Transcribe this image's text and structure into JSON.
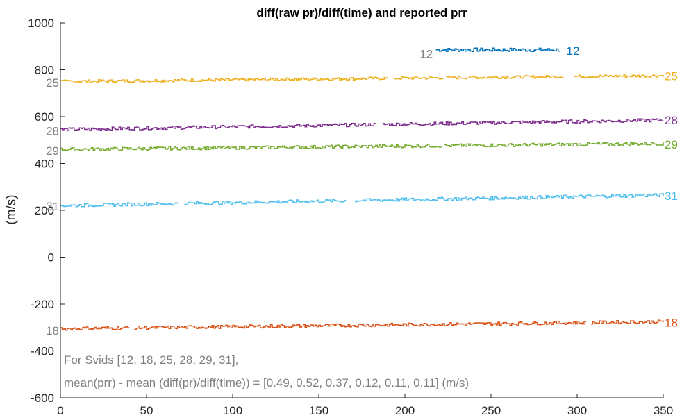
{
  "chart_data": {
    "type": "line",
    "title": "diff(raw pr)/diff(time) and reported prr",
    "xlabel": "",
    "ylabel": "(m/s)",
    "xlim": [
      0,
      350
    ],
    "ylim": [
      -600,
      1000
    ],
    "x_ticks": [
      0,
      50,
      100,
      150,
      200,
      250,
      300,
      350
    ],
    "y_ticks": [
      -600,
      -400,
      -200,
      0,
      200,
      400,
      600,
      800,
      1000
    ],
    "grid": false,
    "legend": "none",
    "series": [
      {
        "name": "12",
        "color": "#0072BD",
        "segments": [
          [
            218,
            290
          ]
        ],
        "y_start": 885,
        "y_end": 885,
        "noise": 8
      },
      {
        "name": "25",
        "color": "#EDB120",
        "segments": [
          [
            0,
            190
          ],
          [
            194,
            222
          ],
          [
            224,
            292
          ],
          [
            298,
            350
          ]
        ],
        "y_start": 750,
        "y_end": 775,
        "noise": 6
      },
      {
        "name": "28",
        "color": "#7E2F8E",
        "segments": [
          [
            0,
            183
          ],
          [
            187,
            350
          ]
        ],
        "y_start": 545,
        "y_end": 585,
        "noise": 7
      },
      {
        "name": "29",
        "color": "#77AC30",
        "segments": [
          [
            0,
            221
          ],
          [
            223,
            350
          ]
        ],
        "y_start": 460,
        "y_end": 485,
        "noise": 7
      },
      {
        "name": "31",
        "color": "#4DBEEE",
        "segments": [
          [
            0,
            68
          ],
          [
            72,
            166
          ],
          [
            171,
            350
          ]
        ],
        "y_start": 220,
        "y_end": 265,
        "noise": 7
      },
      {
        "name": "18",
        "color": "#D95319",
        "segments": [
          [
            0,
            40
          ],
          [
            43,
            305
          ],
          [
            308,
            350
          ]
        ],
        "y_start": -305,
        "y_end": -275,
        "noise": 7
      }
    ],
    "series_labels": [
      {
        "text": "12",
        "color": "#0072BD",
        "x": 293,
        "y": 882,
        "anchor": "start"
      },
      {
        "text": "12",
        "color": "#808080",
        "x": 217,
        "y": 868,
        "anchor": "end"
      },
      {
        "text": "25",
        "color": "#EDB120",
        "x": 350,
        "y": 774,
        "anchor": "start"
      },
      {
        "text": "25",
        "color": "#808080",
        "x": 0,
        "y": 745,
        "anchor": "end"
      },
      {
        "text": "28",
        "color": "#7E2F8E",
        "x": 350,
        "y": 585,
        "anchor": "start"
      },
      {
        "text": "28",
        "color": "#808080",
        "x": 0,
        "y": 540,
        "anchor": "end"
      },
      {
        "text": "29",
        "color": "#77AC30",
        "x": 350,
        "y": 482,
        "anchor": "start"
      },
      {
        "text": "29",
        "color": "#808080",
        "x": 0,
        "y": 455,
        "anchor": "end"
      },
      {
        "text": "31",
        "color": "#4DBEEE",
        "x": 350,
        "y": 262,
        "anchor": "start"
      },
      {
        "text": "31",
        "color": "#808080",
        "x": 0,
        "y": 218,
        "anchor": "end"
      },
      {
        "text": "18",
        "color": "#D95319",
        "x": 350,
        "y": -278,
        "anchor": "start"
      },
      {
        "text": "18",
        "color": "#808080",
        "x": 0,
        "y": -312,
        "anchor": "end"
      }
    ],
    "annotations": [
      "For Svids [12, 18, 25, 28, 29, 31],",
      "mean(prr) - mean (diff(pr)/diff(time)) = [0.49, 0.52, 0.37, 0.12, 0.11, 0.11] (m/s)"
    ]
  }
}
